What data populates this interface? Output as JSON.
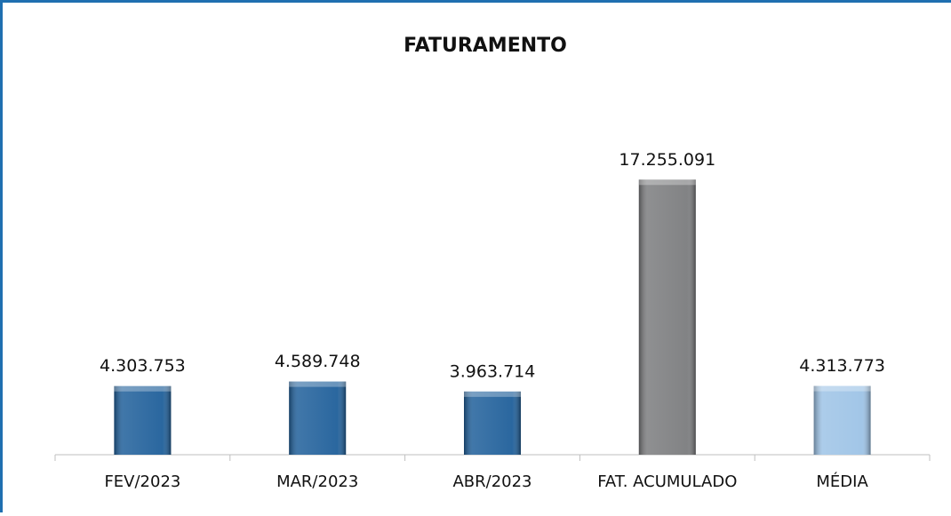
{
  "chart_data": {
    "type": "bar",
    "title": "FATURAMENTO",
    "categories": [
      "FEV/2023",
      "MAR/2023",
      "ABR/2023",
      "FAT. ACUMULADO",
      "MÉDIA"
    ],
    "values": [
      4303753,
      4589748,
      3963714,
      17255091,
      4313773
    ],
    "value_labels": [
      "4.303.753",
      "4.589.748",
      "3.963.714",
      "17.255.091",
      "4.313.773"
    ],
    "colors": [
      "#1f5f9a",
      "#1f5f9a",
      "#1f5f9a",
      "#7b7c7e",
      "#9dc3e6"
    ],
    "ylim": [
      0,
      20000000
    ]
  }
}
